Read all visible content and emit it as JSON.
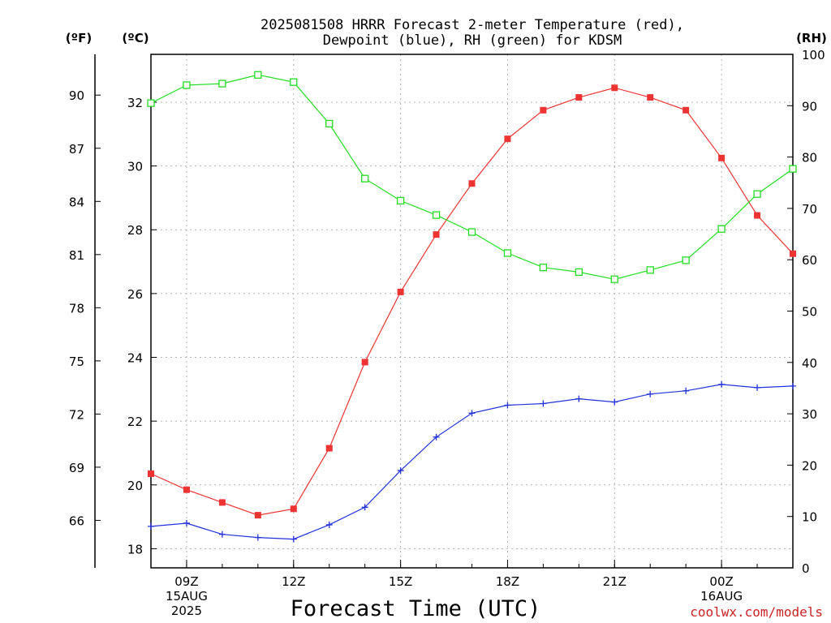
{
  "chart_data": {
    "type": "line",
    "title_lines": [
      "2025081508 HRRR Forecast 2-meter Temperature (red),",
      "Dewpoint (blue), RH (green) for KDSM"
    ],
    "xlabel": "Forecast Time (UTC)",
    "credit": "coolwx.com/models",
    "unit_labels": {
      "fahrenheit": "(ºF)",
      "celsius": "(ºC)",
      "rh": "(RH)"
    },
    "x_hours": [
      8,
      9,
      10,
      11,
      12,
      13,
      14,
      15,
      16,
      17,
      18,
      19,
      20,
      21,
      22,
      23,
      24,
      25,
      26
    ],
    "xlim": [
      8,
      26
    ],
    "x_ticks": [
      {
        "hour": 9,
        "lines": [
          "09Z",
          "15AUG",
          "2025"
        ]
      },
      {
        "hour": 12,
        "lines": [
          "12Z"
        ]
      },
      {
        "hour": 15,
        "lines": [
          "15Z"
        ]
      },
      {
        "hour": 18,
        "lines": [
          "18Z"
        ]
      },
      {
        "hour": 21,
        "lines": [
          "21Z"
        ]
      },
      {
        "hour": 24,
        "lines": [
          "00Z",
          "16AUG"
        ]
      }
    ],
    "celsius_axis": {
      "range": [
        17.4,
        33.5
      ],
      "ticks": [
        18,
        20,
        22,
        24,
        26,
        28,
        30,
        32
      ]
    },
    "fahrenheit_ticks": [
      66,
      69,
      72,
      75,
      78,
      81,
      84,
      87,
      90
    ],
    "rh_axis": {
      "range": [
        0,
        100
      ],
      "ticks": [
        0,
        10,
        20,
        30,
        40,
        50,
        60,
        70,
        80,
        90,
        100
      ]
    },
    "grid": true,
    "series": [
      {
        "key": "temperature",
        "axis": "celsius",
        "color": "#ee3333",
        "marker": "filled-square",
        "values": [
          20.35,
          19.85,
          19.45,
          19.05,
          19.25,
          21.15,
          23.85,
          26.05,
          27.85,
          29.45,
          30.85,
          31.75,
          32.15,
          32.45,
          32.15,
          31.75,
          30.25,
          28.45,
          27.25
        ]
      },
      {
        "key": "dewpoint",
        "axis": "celsius",
        "color": "#2233dd",
        "marker": "plus",
        "values": [
          18.7,
          18.8,
          18.45,
          18.35,
          18.3,
          18.75,
          19.3,
          20.45,
          21.5,
          22.25,
          22.5,
          22.55,
          22.7,
          22.6,
          22.85,
          22.95,
          23.15,
          23.05,
          23.1
        ]
      },
      {
        "key": "rh",
        "axis": "rh",
        "color": "#22dd22",
        "marker": "open-square",
        "values": [
          90.5,
          94.0,
          94.3,
          96.0,
          94.6,
          86.5,
          75.8,
          71.5,
          68.7,
          65.4,
          61.3,
          58.5,
          57.6,
          56.2,
          58.0,
          59.9,
          66.0,
          72.8,
          77.7
        ]
      }
    ]
  }
}
